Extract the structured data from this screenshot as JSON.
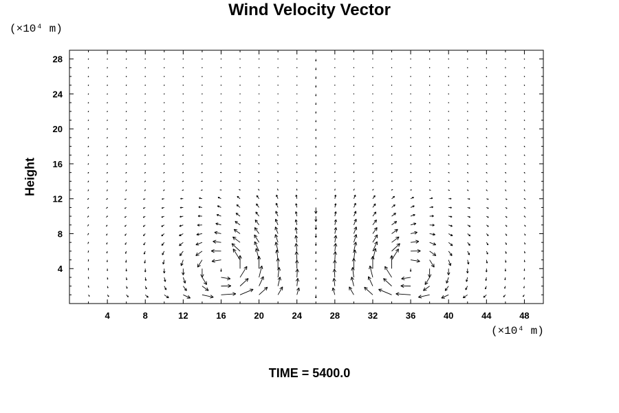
{
  "chart_data": {
    "type": "vector",
    "title": "Wind Velocity Vector",
    "ylabel": "Height",
    "x_unit": "(×10⁴ m)",
    "y_unit": "(×10⁴ m)",
    "xlim": [
      0,
      50
    ],
    "ylim": [
      0,
      29
    ],
    "x_ticks": [
      4,
      8,
      12,
      16,
      20,
      24,
      28,
      32,
      36,
      40,
      44,
      48
    ],
    "y_ticks": [
      4,
      8,
      12,
      16,
      20,
      24,
      28
    ],
    "grid": {
      "x_spacing": 2,
      "y_spacing": 1,
      "x_start": 2,
      "y_start": 1
    },
    "vortices": [
      {
        "center_x": 16.5,
        "center_y": 4,
        "sense": 1
      },
      {
        "center_x": 35.5,
        "center_y": 4,
        "sense": -1
      }
    ],
    "downdraft_x": 26,
    "note": "TIME = 5400.0"
  }
}
